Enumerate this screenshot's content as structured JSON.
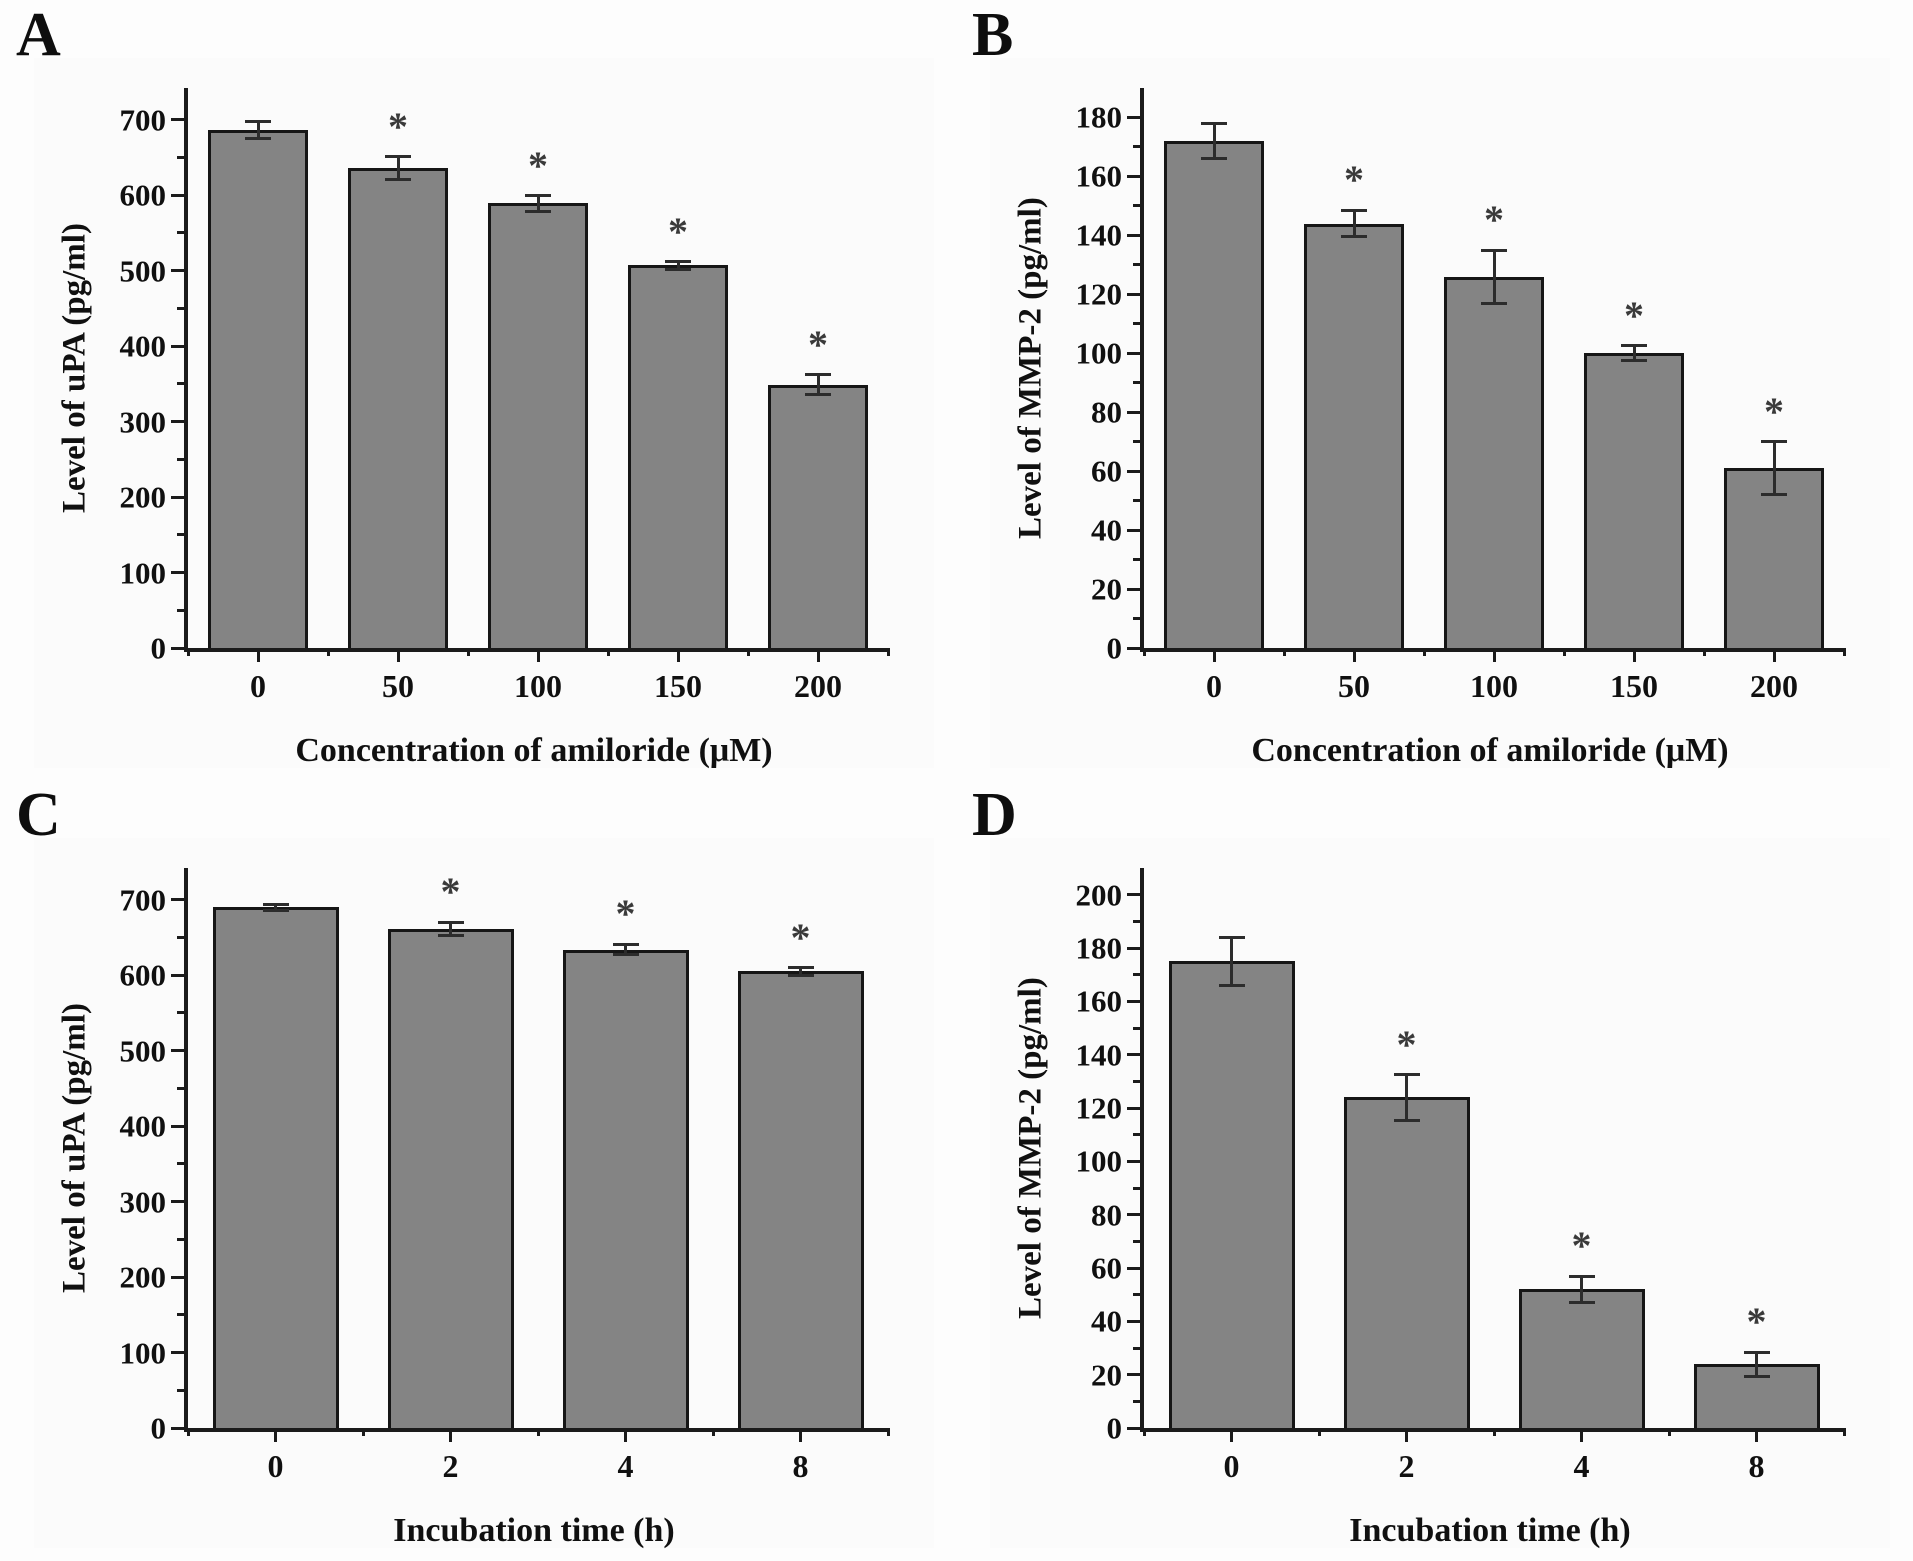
{
  "styles": {
    "bar_fill": "#848484",
    "bar_border": "#161616",
    "axis_color": "#1b1b1b",
    "significance_marker": "*"
  },
  "chart_data": [
    {
      "letter": "A",
      "type": "bar",
      "categories": [
        "0",
        "50",
        "100",
        "150",
        "200"
      ],
      "values": [
        686,
        636,
        589,
        507,
        349
      ],
      "errors": [
        11,
        15,
        10,
        5,
        13
      ],
      "significant": [
        false,
        true,
        true,
        true,
        true
      ],
      "xlabel": "Concentration of amiloride (μM)",
      "ylabel": "Level of uPA (pg/ml)",
      "yticks": [
        0,
        100,
        200,
        300,
        400,
        500,
        600,
        700
      ],
      "minor_step": 50,
      "ylim": [
        0,
        742
      ],
      "legend": "none",
      "grid": "off"
    },
    {
      "letter": "B",
      "type": "bar",
      "categories": [
        "0",
        "50",
        "100",
        "150",
        "200"
      ],
      "values": [
        172,
        144,
        126,
        100,
        61
      ],
      "errors": [
        6,
        4.5,
        9,
        2.5,
        9
      ],
      "significant": [
        false,
        true,
        true,
        true,
        true
      ],
      "xlabel": "Concentration of amiloride (μM)",
      "ylabel": "Level of MMP-2 (pg/ml)",
      "yticks": [
        0,
        20,
        40,
        60,
        80,
        100,
        120,
        140,
        160,
        180
      ],
      "minor_step": 10,
      "ylim": [
        0,
        190
      ],
      "legend": "none",
      "grid": "off"
    },
    {
      "letter": "C",
      "type": "bar",
      "categories": [
        "0",
        "2",
        "4",
        "8"
      ],
      "values": [
        690,
        661,
        634,
        605
      ],
      "errors": [
        4,
        9,
        7,
        5
      ],
      "significant": [
        false,
        true,
        true,
        true
      ],
      "xlabel": "Incubation time (h)",
      "ylabel": "Level of uPA (pg/ml)",
      "yticks": [
        0,
        100,
        200,
        300,
        400,
        500,
        600,
        700
      ],
      "minor_step": 50,
      "ylim": [
        0,
        742
      ],
      "legend": "none",
      "grid": "off"
    },
    {
      "letter": "D",
      "type": "bar",
      "categories": [
        "0",
        "2",
        "4",
        "8"
      ],
      "values": [
        175,
        124,
        52,
        24
      ],
      "errors": [
        9,
        8.5,
        5,
        4.5
      ],
      "significant": [
        false,
        true,
        true,
        true
      ],
      "xlabel": "Incubation time (h)",
      "ylabel": "Level of MMP-2 (pg/ml)",
      "yticks": [
        0,
        20,
        40,
        60,
        80,
        100,
        120,
        140,
        160,
        180,
        200
      ],
      "minor_step": 10,
      "ylim": [
        0,
        210
      ],
      "legend": "none",
      "grid": "off"
    }
  ]
}
